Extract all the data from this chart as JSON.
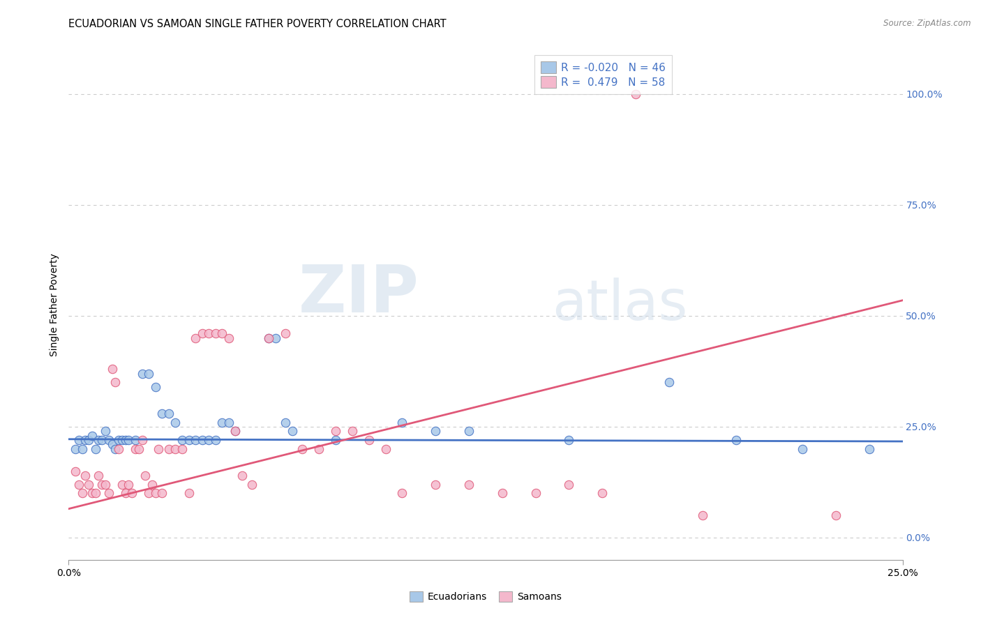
{
  "title": "ECUADORIAN VS SAMOAN SINGLE FATHER POVERTY CORRELATION CHART",
  "source": "Source: ZipAtlas.com",
  "ylabel_label": "Single Father Poverty",
  "right_ytick_labels": [
    "0.0%",
    "25.0%",
    "50.0%",
    "75.0%",
    "100.0%"
  ],
  "right_ytick_values": [
    0.0,
    0.25,
    0.5,
    0.75,
    1.0
  ],
  "x_min": 0.0,
  "x_max": 0.25,
  "y_min": -0.05,
  "y_max": 1.1,
  "ecuadorian_color": "#a8c8e8",
  "samoan_color": "#f4b8cc",
  "trendline_ecuadorian_color": "#4472c4",
  "trendline_samoan_color": "#e05878",
  "legend_ecuadorian_R": "-0.020",
  "legend_ecuadorian_N": "46",
  "legend_samoan_R": "0.479",
  "legend_samoan_N": "58",
  "watermark_zip": "ZIP",
  "watermark_atlas": "atlas",
  "background_color": "#ffffff",
  "grid_color": "#cccccc",
  "ecuadorian_points": [
    [
      0.002,
      0.2
    ],
    [
      0.003,
      0.22
    ],
    [
      0.004,
      0.2
    ],
    [
      0.005,
      0.22
    ],
    [
      0.006,
      0.22
    ],
    [
      0.007,
      0.23
    ],
    [
      0.008,
      0.2
    ],
    [
      0.009,
      0.22
    ],
    [
      0.01,
      0.22
    ],
    [
      0.011,
      0.24
    ],
    [
      0.012,
      0.22
    ],
    [
      0.013,
      0.21
    ],
    [
      0.014,
      0.2
    ],
    [
      0.015,
      0.22
    ],
    [
      0.016,
      0.22
    ],
    [
      0.017,
      0.22
    ],
    [
      0.018,
      0.22
    ],
    [
      0.02,
      0.22
    ],
    [
      0.022,
      0.37
    ],
    [
      0.024,
      0.37
    ],
    [
      0.026,
      0.34
    ],
    [
      0.028,
      0.28
    ],
    [
      0.03,
      0.28
    ],
    [
      0.032,
      0.26
    ],
    [
      0.034,
      0.22
    ],
    [
      0.036,
      0.22
    ],
    [
      0.038,
      0.22
    ],
    [
      0.04,
      0.22
    ],
    [
      0.042,
      0.22
    ],
    [
      0.044,
      0.22
    ],
    [
      0.046,
      0.26
    ],
    [
      0.048,
      0.26
    ],
    [
      0.05,
      0.24
    ],
    [
      0.06,
      0.45
    ],
    [
      0.062,
      0.45
    ],
    [
      0.065,
      0.26
    ],
    [
      0.067,
      0.24
    ],
    [
      0.08,
      0.22
    ],
    [
      0.1,
      0.26
    ],
    [
      0.11,
      0.24
    ],
    [
      0.12,
      0.24
    ],
    [
      0.15,
      0.22
    ],
    [
      0.18,
      0.35
    ],
    [
      0.2,
      0.22
    ],
    [
      0.22,
      0.2
    ],
    [
      0.24,
      0.2
    ]
  ],
  "samoan_points": [
    [
      0.002,
      0.15
    ],
    [
      0.003,
      0.12
    ],
    [
      0.004,
      0.1
    ],
    [
      0.005,
      0.14
    ],
    [
      0.006,
      0.12
    ],
    [
      0.007,
      0.1
    ],
    [
      0.008,
      0.1
    ],
    [
      0.009,
      0.14
    ],
    [
      0.01,
      0.12
    ],
    [
      0.011,
      0.12
    ],
    [
      0.012,
      0.1
    ],
    [
      0.013,
      0.38
    ],
    [
      0.014,
      0.35
    ],
    [
      0.015,
      0.2
    ],
    [
      0.016,
      0.12
    ],
    [
      0.017,
      0.1
    ],
    [
      0.018,
      0.12
    ],
    [
      0.019,
      0.1
    ],
    [
      0.02,
      0.2
    ],
    [
      0.021,
      0.2
    ],
    [
      0.022,
      0.22
    ],
    [
      0.023,
      0.14
    ],
    [
      0.024,
      0.1
    ],
    [
      0.025,
      0.12
    ],
    [
      0.026,
      0.1
    ],
    [
      0.027,
      0.2
    ],
    [
      0.028,
      0.1
    ],
    [
      0.03,
      0.2
    ],
    [
      0.032,
      0.2
    ],
    [
      0.034,
      0.2
    ],
    [
      0.036,
      0.1
    ],
    [
      0.038,
      0.45
    ],
    [
      0.04,
      0.46
    ],
    [
      0.042,
      0.46
    ],
    [
      0.044,
      0.46
    ],
    [
      0.046,
      0.46
    ],
    [
      0.048,
      0.45
    ],
    [
      0.05,
      0.24
    ],
    [
      0.052,
      0.14
    ],
    [
      0.055,
      0.12
    ],
    [
      0.06,
      0.45
    ],
    [
      0.065,
      0.46
    ],
    [
      0.07,
      0.2
    ],
    [
      0.075,
      0.2
    ],
    [
      0.08,
      0.24
    ],
    [
      0.085,
      0.24
    ],
    [
      0.09,
      0.22
    ],
    [
      0.095,
      0.2
    ],
    [
      0.1,
      0.1
    ],
    [
      0.11,
      0.12
    ],
    [
      0.12,
      0.12
    ],
    [
      0.13,
      0.1
    ],
    [
      0.14,
      0.1
    ],
    [
      0.15,
      0.12
    ],
    [
      0.16,
      0.1
    ],
    [
      0.17,
      1.0
    ],
    [
      0.19,
      0.05
    ],
    [
      0.23,
      0.05
    ]
  ],
  "ecuadorian_trend_x": [
    0.0,
    0.25
  ],
  "ecuadorian_trend_y": [
    0.222,
    0.217
  ],
  "samoan_trend_x": [
    0.0,
    0.25
  ],
  "samoan_trend_y": [
    0.065,
    0.535
  ]
}
